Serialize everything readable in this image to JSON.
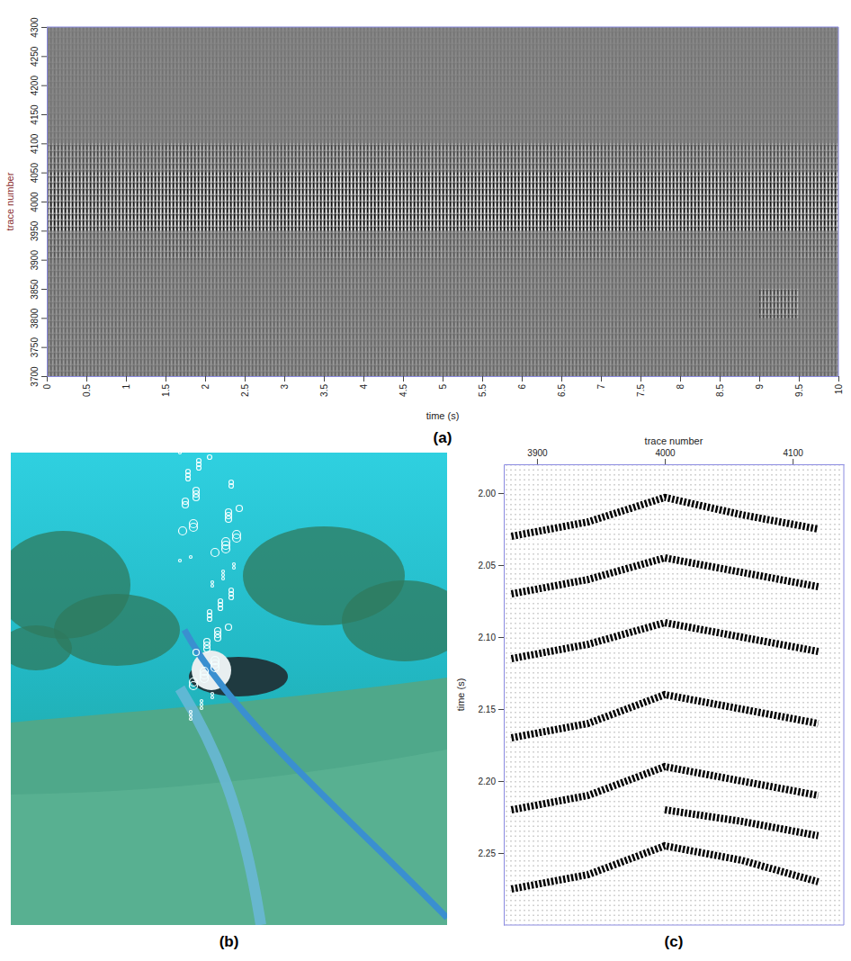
{
  "chart_data": [
    {
      "type": "heatmap",
      "panel_label": "(a)",
      "x_label": "time (s)",
      "y_label": "trace number",
      "xlim": [
        0,
        10
      ],
      "ylim": [
        3700,
        4300
      ],
      "xticks": [
        0,
        0.5,
        1,
        1.5,
        2,
        2.5,
        3,
        3.5,
        4,
        4.5,
        5,
        5.5,
        6,
        6.5,
        7,
        7.5,
        8,
        8.5,
        9,
        9.5,
        10
      ],
      "yticks": [
        3700,
        3750,
        3800,
        3850,
        3900,
        3950,
        4000,
        4050,
        4100,
        4150,
        4200,
        4250,
        4300
      ],
      "x_bins": [
        0,
        0.5,
        1,
        1.5,
        2,
        2.5,
        3,
        3.5,
        4,
        4.5,
        5,
        5.5,
        6,
        6.5,
        7,
        7.5,
        8,
        8.5,
        9,
        9.5,
        10
      ],
      "y_bins": [
        3700,
        3750,
        3800,
        3850,
        3900,
        3950,
        4000,
        4050,
        4100,
        4150,
        4200,
        4250,
        4300
      ],
      "cells": [
        [
          0.22,
          0.2,
          0.18,
          0.22,
          0.2,
          0.2,
          0.18,
          0.2,
          0.22,
          0.2,
          0.2,
          0.18,
          0.2,
          0.22,
          0.2,
          0.18,
          0.2,
          0.2,
          0.18,
          0.2
        ],
        [
          0.2,
          0.22,
          0.2,
          0.18,
          0.2,
          0.22,
          0.2,
          0.2,
          0.18,
          0.2,
          0.22,
          0.2,
          0.2,
          0.18,
          0.2,
          0.2,
          0.22,
          0.2,
          0.2,
          0.18
        ],
        [
          0.18,
          0.18,
          0.2,
          0.18,
          0.16,
          0.18,
          0.2,
          0.18,
          0.18,
          0.16,
          0.18,
          0.2,
          0.18,
          0.18,
          0.16,
          0.18,
          0.2,
          0.18,
          0.5,
          0.18
        ],
        [
          0.2,
          0.2,
          0.22,
          0.2,
          0.2,
          0.18,
          0.2,
          0.22,
          0.2,
          0.2,
          0.2,
          0.22,
          0.2,
          0.2,
          0.18,
          0.2,
          0.22,
          0.2,
          0.2,
          0.2
        ],
        [
          0.35,
          0.3,
          0.35,
          0.4,
          0.35,
          0.3,
          0.35,
          0.4,
          0.4,
          0.35,
          0.3,
          0.35,
          0.35,
          0.4,
          0.35,
          0.3,
          0.35,
          0.3,
          0.3,
          0.35
        ],
        [
          0.8,
          0.75,
          0.8,
          0.85,
          0.85,
          0.8,
          0.85,
          0.9,
          0.9,
          0.85,
          0.85,
          0.9,
          0.9,
          0.9,
          0.85,
          0.85,
          0.85,
          0.8,
          0.85,
          0.8
        ],
        [
          0.7,
          0.7,
          0.75,
          0.8,
          0.8,
          0.75,
          0.8,
          0.85,
          0.85,
          0.8,
          0.8,
          0.85,
          0.85,
          0.85,
          0.8,
          0.8,
          0.8,
          0.75,
          0.8,
          0.75
        ],
        [
          0.4,
          0.45,
          0.4,
          0.5,
          0.45,
          0.4,
          0.45,
          0.5,
          0.5,
          0.45,
          0.45,
          0.5,
          0.5,
          0.5,
          0.45,
          0.45,
          0.45,
          0.4,
          0.45,
          0.4
        ],
        [
          0.12,
          0.12,
          0.1,
          0.12,
          0.12,
          0.1,
          0.12,
          0.14,
          0.12,
          0.12,
          0.1,
          0.12,
          0.12,
          0.14,
          0.12,
          0.12,
          0.1,
          0.12,
          0.12,
          0.1
        ],
        [
          0.08,
          0.08,
          0.08,
          0.08,
          0.08,
          0.08,
          0.08,
          0.08,
          0.08,
          0.08,
          0.08,
          0.08,
          0.08,
          0.08,
          0.08,
          0.08,
          0.08,
          0.08,
          0.08,
          0.08
        ],
        [
          0.1,
          0.1,
          0.1,
          0.1,
          0.1,
          0.1,
          0.1,
          0.1,
          0.1,
          0.1,
          0.1,
          0.1,
          0.1,
          0.1,
          0.1,
          0.1,
          0.1,
          0.1,
          0.1,
          0.1
        ],
        [
          0.08,
          0.08,
          0.08,
          0.08,
          0.08,
          0.08,
          0.08,
          0.08,
          0.08,
          0.08,
          0.08,
          0.08,
          0.08,
          0.08,
          0.08,
          0.08,
          0.08,
          0.08,
          0.08,
          0.08
        ]
      ]
    },
    {
      "type": "line",
      "panel_label": "(c)",
      "x_label": "trace number",
      "y_label": "time (s)",
      "xlim": [
        3874,
        4140
      ],
      "ylim": [
        1.98,
        2.3
      ],
      "xticks": [
        3900,
        4000,
        4100
      ],
      "yticks": [
        {
          "value": 2,
          "label": "2.00"
        },
        2.05,
        {
          "value": 2.1,
          "label": "2.10"
        },
        2.15,
        {
          "value": 2.2,
          "label": "2.20"
        },
        2.25
      ],
      "color": "#000000",
      "series": [
        {
          "x": [
            3880,
            3940,
            4000,
            4060,
            4120
          ],
          "values": [
            2.03,
            2.02,
            2.003,
            2.015,
            2.025
          ]
        },
        {
          "x": [
            3880,
            3940,
            4000,
            4060,
            4120
          ],
          "values": [
            2.07,
            2.06,
            2.045,
            2.055,
            2.065
          ]
        },
        {
          "x": [
            3880,
            3940,
            4000,
            4060,
            4120
          ],
          "values": [
            2.115,
            2.105,
            2.09,
            2.1,
            2.11
          ]
        },
        {
          "x": [
            3880,
            3940,
            4000,
            4060,
            4120
          ],
          "values": [
            2.17,
            2.16,
            2.14,
            2.15,
            2.16
          ]
        },
        {
          "x": [
            3880,
            3940,
            4000,
            4060,
            4120
          ],
          "values": [
            2.22,
            2.21,
            2.19,
            2.2,
            2.21
          ]
        },
        {
          "x": [
            3880,
            3940,
            4000,
            4060,
            4120
          ],
          "values": [
            2.275,
            2.265,
            2.245,
            2.255,
            2.27
          ]
        },
        {
          "x": [
            4000,
            4060,
            4120
          ],
          "values": [
            2.22,
            2.228,
            2.238
          ]
        }
      ]
    }
  ],
  "photo": {
    "panel_label": "(b)"
  }
}
